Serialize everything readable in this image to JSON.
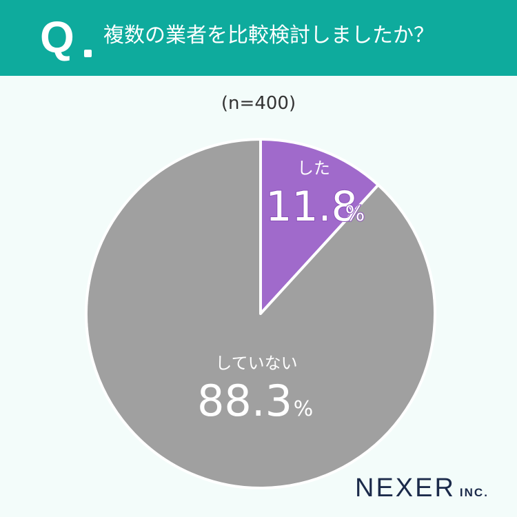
{
  "header": {
    "q_letter": "Q",
    "question": "複数の業者を比較検討しましたか？",
    "color": "#0eab9d"
  },
  "sample_size": "(n=400)",
  "chart_data": {
    "type": "pie",
    "slices": [
      {
        "label": "した",
        "value": 11.8,
        "display": "11.8",
        "unit": "%",
        "color": "#a06acb"
      },
      {
        "label": "していない",
        "value": 88.3,
        "display": "88.3",
        "unit": "%",
        "color": "#a0a0a0"
      }
    ],
    "start_angle_deg": 0,
    "direction": "clockwise"
  },
  "brand": {
    "name": "NEXER",
    "suffix": "INC."
  }
}
